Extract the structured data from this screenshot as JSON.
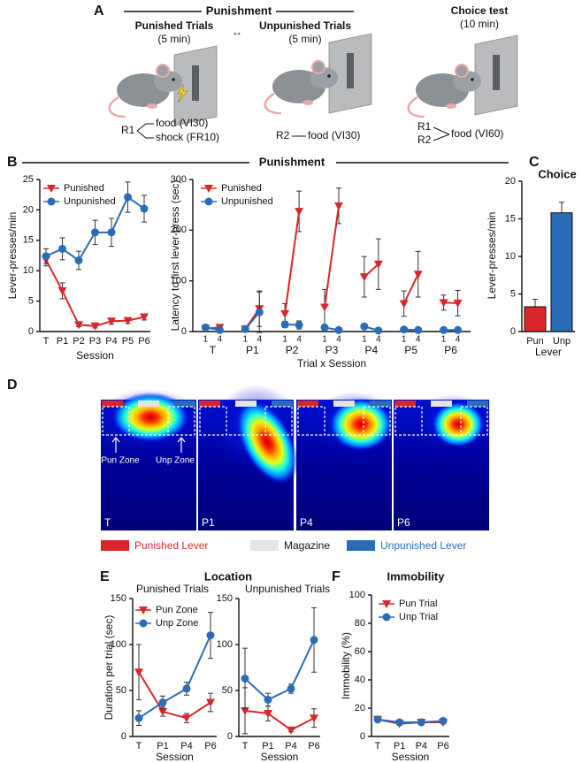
{
  "panel_a": {
    "panel": "A",
    "heading": "Punishment",
    "punished": {
      "title": "Punished Trials",
      "duration": "(5 min)",
      "response": "R1",
      "outcomes": [
        "food (VI30)",
        "shock (FR10)"
      ]
    },
    "switch": "↔",
    "unpunished": {
      "title": "Unpunished Trials",
      "duration": "(5 min)",
      "response": "R2",
      "outcome": "food (VI30)"
    },
    "choice": {
      "title": "Choice test",
      "duration": "(10 min)",
      "responses": [
        "R1",
        "R2"
      ],
      "outcome": "food (VI60)"
    }
  },
  "panel_d": {
    "panel": "D",
    "sessions": [
      "T",
      "P1",
      "P4",
      "P6"
    ],
    "zones": [
      "Pun Zone",
      "Unp Zone"
    ],
    "legend": [
      "Punished Lever",
      "Magazine",
      "Unpunished Lever"
    ]
  },
  "chart_data": [
    {
      "type": "line",
      "panel": "B",
      "title": "Punishment",
      "ylabel": "Lever-presses/min",
      "xlabel": "Session",
      "categories": [
        "T",
        "P1",
        "P2",
        "P3",
        "P4",
        "P5",
        "P6"
      ],
      "ylim": [
        0,
        25
      ],
      "yticks": [
        0,
        5,
        10,
        15,
        20,
        25
      ],
      "series": [
        {
          "name": "Punished",
          "color": "#d9262a",
          "marker": "triangle",
          "values": [
            11.8,
            6.7,
            1.1,
            0.9,
            1.7,
            1.8,
            2.4
          ],
          "errors": [
            1.0,
            1.3,
            0.3,
            0.3,
            0.5,
            0.5,
            0.5
          ]
        },
        {
          "name": "Unpunished",
          "color": "#2a6cb8",
          "marker": "circle",
          "values": [
            12.4,
            13.6,
            11.7,
            16.3,
            16.3,
            22.1,
            20.2
          ],
          "errors": [
            1.2,
            1.8,
            1.5,
            2.0,
            2.3,
            2.5,
            2.2
          ]
        }
      ]
    },
    {
      "type": "paired-line",
      "ylabel": "Latency to first lever-press (sec)",
      "xlabel": "Trial x Session",
      "sessions": [
        "T",
        "P1",
        "P2",
        "P3",
        "P4",
        "P5",
        "P6"
      ],
      "trials": [
        "1",
        "4"
      ],
      "ylim": [
        0,
        300
      ],
      "yticks": [
        0,
        100,
        200,
        300
      ],
      "series": [
        {
          "name": "Punished",
          "color": "#d9262a",
          "marker": "triangle",
          "values": [
            [
              6,
              8
            ],
            [
              5,
              45
            ],
            [
              35,
              237
            ],
            [
              48,
              248
            ],
            [
              108,
              133
            ],
            [
              55,
              113
            ],
            [
              57,
              56
            ]
          ],
          "errors": [
            [
              3,
              4
            ],
            [
              3,
              35
            ],
            [
              20,
              40
            ],
            [
              35,
              35
            ],
            [
              40,
              50
            ],
            [
              25,
              45
            ],
            [
              15,
              25
            ]
          ]
        },
        {
          "name": "Unpunished",
          "color": "#2a6cb8",
          "marker": "circle",
          "values": [
            [
              8,
              3
            ],
            [
              5,
              38
            ],
            [
              14,
              13
            ],
            [
              8,
              3
            ],
            [
              10,
              2
            ],
            [
              4,
              3
            ],
            [
              3,
              3
            ]
          ],
          "errors": [
            [
              3,
              2
            ],
            [
              3,
              40
            ],
            [
              6,
              8
            ],
            [
              4,
              2
            ],
            [
              3,
              1
            ],
            [
              2,
              1
            ],
            [
              2,
              1
            ]
          ]
        }
      ]
    },
    {
      "type": "bar",
      "panel": "C",
      "title": "Choice",
      "ylabel": "Lever-presses/min",
      "xlabel": "Lever",
      "categories": [
        "Pun",
        "Unp"
      ],
      "values": [
        3.3,
        15.8
      ],
      "errors": [
        1.0,
        1.4
      ],
      "colors": [
        "#d9262a",
        "#2a6cb8"
      ],
      "ylim": [
        0,
        20
      ],
      "yticks": [
        0,
        5,
        10,
        15,
        20
      ]
    },
    {
      "type": "line",
      "panel": "E",
      "title": "Location",
      "subtitle": "Punished Trials",
      "ylabel": "Duration per trial (sec)",
      "xlabel": "Session",
      "categories": [
        "T",
        "P1",
        "P4",
        "P6"
      ],
      "ylim": [
        0,
        150
      ],
      "yticks": [
        0,
        50,
        100,
        150
      ],
      "series": [
        {
          "name": "Pun Zone",
          "color": "#d9262a",
          "marker": "triangle",
          "values": [
            70,
            27,
            20,
            37
          ],
          "errors": [
            30,
            5,
            5,
            10
          ]
        },
        {
          "name": "Unp Zone",
          "color": "#2a6cb8",
          "marker": "circle",
          "values": [
            20,
            37,
            52,
            110
          ],
          "errors": [
            8,
            7,
            7,
            25
          ]
        }
      ]
    },
    {
      "type": "line",
      "subtitle": "Unpunished Trials",
      "xlabel": "Session",
      "categories": [
        "T",
        "P1",
        "P4",
        "P6"
      ],
      "ylim": [
        0,
        150
      ],
      "yticks": [
        0,
        50,
        100,
        150
      ],
      "series": [
        {
          "color": "#d9262a",
          "marker": "triangle",
          "values": [
            28,
            25,
            7,
            20
          ],
          "errors": [
            25,
            8,
            2,
            10
          ]
        },
        {
          "color": "#2a6cb8",
          "marker": "circle",
          "values": [
            63,
            40,
            52,
            105
          ],
          "errors": [
            33,
            7,
            5,
            35
          ]
        }
      ]
    },
    {
      "type": "line",
      "panel": "F",
      "title": "Immobility",
      "ylabel": "Immobility (%)",
      "xlabel": "Session",
      "categories": [
        "T",
        "P1",
        "P4",
        "P6"
      ],
      "ylim": [
        0,
        100
      ],
      "yticks": [
        0,
        20,
        40,
        60,
        80,
        100
      ],
      "series": [
        {
          "name": "Pun Trial",
          "color": "#d9262a",
          "marker": "triangle",
          "values": [
            12,
            9,
            10,
            10
          ],
          "errors": [
            1,
            1,
            1,
            1
          ]
        },
        {
          "name": "Unp Trial",
          "color": "#2a6cb8",
          "marker": "circle",
          "values": [
            12,
            10,
            10,
            11
          ],
          "errors": [
            1,
            1,
            1,
            1
          ]
        }
      ]
    }
  ]
}
